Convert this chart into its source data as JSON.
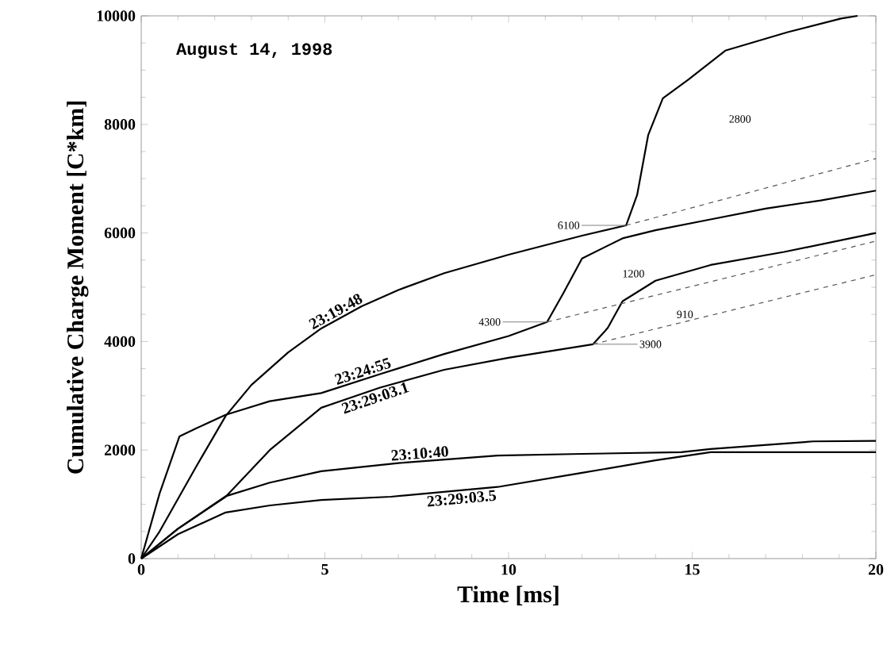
{
  "chart_data": {
    "type": "line",
    "xlabel": "Time [ms]",
    "ylabel": "Cumulative Charge Moment [C*km]",
    "xlim": [
      0,
      20
    ],
    "ylim": [
      0,
      10000
    ],
    "xticks": [
      0,
      5,
      10,
      15,
      20
    ],
    "yticks": [
      0,
      2000,
      4000,
      6000,
      8000,
      10000
    ],
    "grid": false,
    "legend": false,
    "marker": "none",
    "line_style": "solid",
    "series": [
      {
        "name": "23:19:48",
        "color": "#000000",
        "x": [
          0,
          0.5,
          1,
          1.5,
          2.3,
          3,
          4,
          4.9,
          6,
          7,
          8.25,
          10,
          12,
          13.2,
          13.5,
          13.8,
          14.2,
          14.9,
          15.9,
          17.6,
          19.05,
          19.5
        ],
        "values": [
          0,
          500,
          1100,
          1700,
          2630,
          3200,
          3800,
          4240,
          4650,
          4950,
          5260,
          5600,
          5950,
          6140,
          6700,
          7800,
          8480,
          8830,
          9360,
          9700,
          9950,
          10000
        ]
      },
      {
        "name": "23:24:55",
        "color": "#000000",
        "x": [
          0,
          0.5,
          1.04,
          1.5,
          2.3,
          3.5,
          4.9,
          6.5,
          8.25,
          10,
          11.05,
          11.5,
          12,
          13.1,
          14,
          15.5,
          17,
          18.5,
          20
        ],
        "values": [
          0,
          1200,
          2250,
          2400,
          2650,
          2900,
          3050,
          3400,
          3770,
          4100,
          4360,
          4900,
          5530,
          5900,
          6050,
          6250,
          6450,
          6600,
          6780
        ]
      },
      {
        "name": "23:29:03.1",
        "color": "#000000",
        "x": [
          0,
          1,
          2.3,
          3.5,
          4.9,
          6.5,
          8.25,
          10,
          12.3,
          12.7,
          13.1,
          14,
          15.5,
          17.5,
          20
        ],
        "values": [
          0,
          550,
          1140,
          2000,
          2780,
          3150,
          3480,
          3700,
          3950,
          4250,
          4740,
          5120,
          5410,
          5650,
          6000
        ]
      },
      {
        "name": "23:10:40",
        "color": "#000000",
        "x": [
          0,
          1,
          2.3,
          3.5,
          4.9,
          7,
          9.7,
          12,
          14.7,
          15.5,
          18.3,
          20
        ],
        "values": [
          0,
          550,
          1150,
          1400,
          1610,
          1760,
          1900,
          1930,
          1960,
          2020,
          2160,
          2170
        ]
      },
      {
        "name": "23:29:03.5",
        "color": "#000000",
        "x": [
          0,
          1,
          2.3,
          3.5,
          4.9,
          6.8,
          9.7,
          12,
          14,
          15.5,
          17.5,
          20
        ],
        "values": [
          0,
          450,
          850,
          980,
          1080,
          1140,
          1320,
          1580,
          1810,
          1960,
          1960,
          1960
        ]
      },
      {
        "color": "#555555",
        "line_style": "dashed",
        "x": [
          13.2,
          20
        ],
        "values": [
          6140,
          7370
        ]
      },
      {
        "color": "#555555",
        "line_style": "dashed",
        "x": [
          11.05,
          20
        ],
        "values": [
          4360,
          5850
        ]
      },
      {
        "color": "#555555",
        "line_style": "dashed",
        "x": [
          12.3,
          20
        ],
        "values": [
          3950,
          5230
        ]
      }
    ],
    "annotations": [
      "August 14, 1998",
      {
        "text": "6100",
        "x": 13.2,
        "y": 6140
      },
      "2800",
      {
        "text": "4300",
        "x": 11.05,
        "y": 4360
      },
      "1200",
      "910",
      {
        "text": "3900",
        "x": 12.3,
        "y": 3950
      }
    ]
  }
}
